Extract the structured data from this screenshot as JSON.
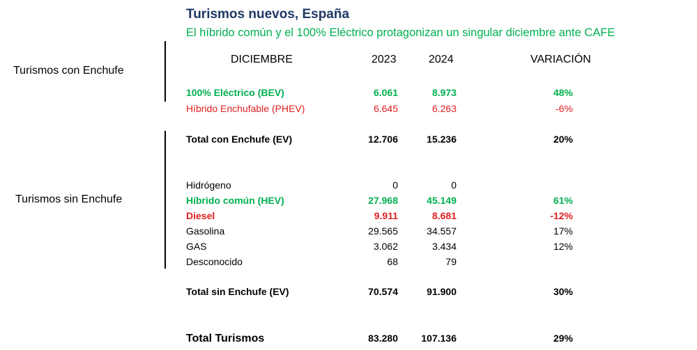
{
  "title": "Turismos nuevos, España",
  "subtitle": "El híbrido común y el 100% Eléctrico protagonizan un singular diciembre ante CAFE",
  "groups": {
    "con": "Turismos con Enchufe",
    "sin": "Turismos sin Enchufe"
  },
  "header": {
    "month": "DICIEMBRE",
    "y2023": "2023",
    "y2024": "2024",
    "variation": "VARIACIÓN"
  },
  "colors": {
    "green": "#00b050",
    "red": "#e02020",
    "title": "#1f3864"
  },
  "rows": [
    {
      "label": "100% Eléctrico (BEV)",
      "v2023": "6.061",
      "v2024": "8.973",
      "var": "48%"
    },
    {
      "label": "Híbrido Enchufable (PHEV)",
      "v2023": "6.645",
      "v2024": "6.263",
      "var": "-6%"
    },
    {
      "label": "Total con Enchufe  (EV)",
      "v2023": "12.706",
      "v2024": "15.236",
      "var": "20%"
    },
    {
      "label": "Hidrógeno",
      "v2023": "0",
      "v2024": "0",
      "var": ""
    },
    {
      "label": "Híbrido común   (HEV)",
      "v2023": "27.968",
      "v2024": "45.149",
      "var": "61%"
    },
    {
      "label": "Diesel",
      "v2023": "9.911",
      "v2024": "8.681",
      "var": "-12%"
    },
    {
      "label": "Gasolina",
      "v2023": "29.565",
      "v2024": "34.557",
      "var": "17%"
    },
    {
      "label": "GAS",
      "v2023": "3.062",
      "v2024": "3.434",
      "var": "12%"
    },
    {
      "label": "Desconocido",
      "v2023": "68",
      "v2024": "79",
      "var": ""
    },
    {
      "label": "Total sin Enchufe  (EV)",
      "v2023": "70.574",
      "v2024": "91.900",
      "var": "30%"
    },
    {
      "label": "Total Turismos",
      "v2023": "83.280",
      "v2024": "107.136",
      "var": "29%"
    }
  ]
}
